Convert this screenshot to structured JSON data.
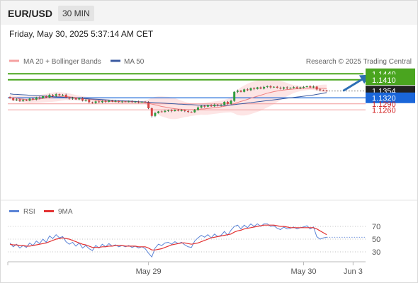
{
  "header": {
    "pair": "EUR/USD",
    "timeframe": "30 MIN"
  },
  "datetime": "Friday, May 30, 2025 5:37:14 AM CET",
  "legend": {
    "ma20": "MA 20 + Bollinger Bands",
    "ma50": "MA 50",
    "credit": "Research © 2025 Trading Central"
  },
  "colors": {
    "up": "#2e9e3e",
    "down": "#d64545",
    "wick": "#333333",
    "ma20": "#f08080",
    "ma50": "#3a5aa0",
    "band": "#fde0e0",
    "resistance": "#4aa51f",
    "pivot": "#1a66d9",
    "support": "#f19a9a",
    "support_text": "#d21f1f",
    "current": "#222222",
    "rsi": "#5b84d6",
    "rsi_ma": "#e33333",
    "arrow": "#2e6fb5"
  },
  "chart_data": [
    {
      "type": "candlestick",
      "name": "EUR/USD 30 MIN",
      "ylim": [
        1.082,
        1.1455
      ],
      "x_labels": [
        {
          "label": "May 29",
          "index": 42
        },
        {
          "label": "May 30",
          "index": 89
        },
        {
          "label": "Jun 3",
          "index": 104
        }
      ],
      "levels": [
        {
          "value": 1.144,
          "label": "1.1440",
          "kind": "resistance"
        },
        {
          "value": 1.141,
          "label": "1.1410",
          "kind": "resistance"
        },
        {
          "value": 1.1354,
          "label": "1.1354",
          "kind": "current"
        },
        {
          "value": 1.132,
          "label": "1.1320",
          "kind": "pivot"
        },
        {
          "value": 1.129,
          "label": "1.1290",
          "kind": "support"
        },
        {
          "value": 1.126,
          "label": "1.1260",
          "kind": "support"
        }
      ],
      "forecast_arrow": {
        "from_index": 101,
        "from": 1.1355,
        "to_index": 109,
        "to": 1.1435
      },
      "close": [
        1.1318,
        1.1308,
        1.1312,
        1.1305,
        1.131,
        1.1306,
        1.1316,
        1.1312,
        1.1322,
        1.1318,
        1.1328,
        1.1322,
        1.1335,
        1.133,
        1.1338,
        1.1332,
        1.1335,
        1.1322,
        1.1316,
        1.132,
        1.1312,
        1.1318,
        1.1306,
        1.131,
        1.1298,
        1.1294,
        1.1302,
        1.1298,
        1.1304,
        1.13,
        1.1306,
        1.1302,
        1.1304,
        1.13,
        1.1302,
        1.13,
        1.1302,
        1.1299,
        1.1301,
        1.1298,
        1.13,
        1.1297,
        1.1268,
        1.123,
        1.1244,
        1.1252,
        1.125,
        1.1255,
        1.1258,
        1.1254,
        1.126,
        1.1256,
        1.1258,
        1.1254,
        1.125,
        1.1248,
        1.126,
        1.1272,
        1.128,
        1.1276,
        1.1284,
        1.1278,
        1.1286,
        1.1282,
        1.1285,
        1.13,
        1.129,
        1.1305,
        1.135,
        1.1356,
        1.135,
        1.1362,
        1.1358,
        1.1368,
        1.1364,
        1.1372,
        1.1366,
        1.1374,
        1.1378,
        1.1372,
        1.1375,
        1.137,
        1.1366,
        1.1372,
        1.1368,
        1.137,
        1.1373,
        1.1368,
        1.1372,
        1.1374,
        1.1378,
        1.1372,
        1.1376,
        1.1362,
        1.1358,
        1.1356,
        1.1354
      ],
      "ma20": [
        1.1322,
        1.132,
        1.1318,
        1.1315,
        1.1313,
        1.1311,
        1.131,
        1.1311,
        1.1313,
        1.1315,
        1.1317,
        1.1319,
        1.1321,
        1.1323,
        1.1325,
        1.1326,
        1.1327,
        1.1327,
        1.1325,
        1.1323,
        1.1321,
        1.1319,
        1.1317,
        1.1315,
        1.1313,
        1.1311,
        1.1309,
        1.1307,
        1.1305,
        1.1304,
        1.1303,
        1.1302,
        1.1301,
        1.1301,
        1.13,
        1.13,
        1.13,
        1.13,
        1.13,
        1.1299,
        1.1298,
        1.1297,
        1.1294,
        1.1289,
        1.1285,
        1.1281,
        1.1277,
        1.1274,
        1.1271,
        1.1268,
        1.1266,
        1.1264,
        1.1263,
        1.1262,
        1.1261,
        1.1261,
        1.1261,
        1.1262,
        1.1264,
        1.1265,
        1.1267,
        1.1269,
        1.1271,
        1.1273,
        1.1275,
        1.1278,
        1.1281,
        1.1285,
        1.1291,
        1.1297,
        1.1302,
        1.1307,
        1.1312,
        1.1318,
        1.1323,
        1.1328,
        1.1333,
        1.1338,
        1.1343,
        1.1347,
        1.1351,
        1.1354,
        1.1357,
        1.1359,
        1.1361,
        1.1362,
        1.1364,
        1.1365,
        1.1366,
        1.1367,
        1.1368,
        1.1369,
        1.1369,
        1.1369,
        1.1368,
        1.1367,
        1.1366
      ],
      "bb_upper": [
        1.1335,
        1.1333,
        1.1332,
        1.133,
        1.1328,
        1.1327,
        1.1327,
        1.1328,
        1.1331,
        1.1334,
        1.1337,
        1.134,
        1.1343,
        1.1346,
        1.1348,
        1.1348,
        1.1347,
        1.1345,
        1.1342,
        1.1338,
        1.1334,
        1.1331,
        1.1328,
        1.1326,
        1.1324,
        1.1322,
        1.132,
        1.1318,
        1.1316,
        1.1314,
        1.1312,
        1.131,
        1.1309,
        1.1308,
        1.1307,
        1.1306,
        1.1306,
        1.1305,
        1.1305,
        1.1305,
        1.1305,
        1.1306,
        1.1312,
        1.132,
        1.1325,
        1.1327,
        1.1327,
        1.1326,
        1.1325,
        1.1322,
        1.1318,
        1.1312,
        1.1306,
        1.13,
        1.1296,
        1.1292,
        1.129,
        1.129,
        1.1292,
        1.1295,
        1.1298,
        1.13,
        1.1302,
        1.1304,
        1.1306,
        1.131,
        1.1315,
        1.1322,
        1.134,
        1.136,
        1.1372,
        1.1382,
        1.139,
        1.1397,
        1.1402,
        1.1406,
        1.141,
        1.1412,
        1.1414,
        1.1414,
        1.1413,
        1.141,
        1.1405,
        1.14,
        1.1394,
        1.1388,
        1.1384,
        1.1381,
        1.1379,
        1.1378,
        1.1378,
        1.1378,
        1.1379,
        1.1382,
        1.1384,
        1.1386,
        1.1386
      ],
      "bb_lower": [
        1.1309,
        1.1307,
        1.1304,
        1.13,
        1.1298,
        1.1295,
        1.1293,
        1.1294,
        1.1295,
        1.1296,
        1.1297,
        1.1298,
        1.1299,
        1.13,
        1.1302,
        1.1304,
        1.1307,
        1.1309,
        1.1308,
        1.1308,
        1.1308,
        1.1307,
        1.1306,
        1.1304,
        1.1302,
        1.13,
        1.1298,
        1.1296,
        1.1294,
        1.1294,
        1.1294,
        1.1294,
        1.1293,
        1.1294,
        1.1293,
        1.1294,
        1.1294,
        1.1295,
        1.1295,
        1.1293,
        1.1291,
        1.1288,
        1.1276,
        1.1258,
        1.1245,
        1.1235,
        1.1227,
        1.1222,
        1.1217,
        1.1214,
        1.1214,
        1.1216,
        1.122,
        1.1224,
        1.1226,
        1.123,
        1.1232,
        1.1234,
        1.1236,
        1.1235,
        1.1236,
        1.1238,
        1.124,
        1.1242,
        1.1244,
        1.1246,
        1.1247,
        1.1248,
        1.1242,
        1.1234,
        1.1232,
        1.1232,
        1.1234,
        1.1239,
        1.1244,
        1.125,
        1.1256,
        1.1264,
        1.1272,
        1.128,
        1.1289,
        1.1298,
        1.1309,
        1.1318,
        1.1328,
        1.1336,
        1.1344,
        1.1349,
        1.1353,
        1.1356,
        1.1358,
        1.136,
        1.1359,
        1.1356,
        1.1352,
        1.1348,
        1.1346
      ],
      "ma50": [
        1.134,
        1.1338,
        1.1337,
        1.1336,
        1.1335,
        1.1334,
        1.1333,
        1.1332,
        1.1331,
        1.133,
        1.1329,
        1.1328,
        1.1327,
        1.1326,
        1.1325,
        1.1324,
        1.1323,
        1.1322,
        1.1321,
        1.132,
        1.1319,
        1.1318,
        1.1317,
        1.1316,
        1.1315,
        1.1314,
        1.1313,
        1.1312,
        1.1311,
        1.131,
        1.1309,
        1.1308,
        1.1307,
        1.1306,
        1.1305,
        1.1304,
        1.1304,
        1.1303,
        1.1302,
        1.1301,
        1.13,
        1.1299,
        1.1298,
        1.1297,
        1.1296,
        1.1295,
        1.1294,
        1.1293,
        1.1292,
        1.1291,
        1.129,
        1.1289,
        1.1288,
        1.1287,
        1.1286,
        1.1286,
        1.1285,
        1.1284,
        1.1284,
        1.1283,
        1.1283,
        1.1282,
        1.1282,
        1.1282,
        1.1282,
        1.1282,
        1.1283,
        1.1284,
        1.1286,
        1.1288,
        1.129,
        1.1292,
        1.1294,
        1.1296,
        1.1298,
        1.13,
        1.1302,
        1.1304,
        1.1306,
        1.1308,
        1.131,
        1.1312,
        1.1314,
        1.1316,
        1.1318,
        1.132,
        1.1322,
        1.1324,
        1.1326,
        1.1328,
        1.133,
        1.1332,
        1.1334,
        1.1337,
        1.134,
        1.1343,
        1.1346
      ]
    },
    {
      "type": "line",
      "name": "RSI",
      "legend": [
        "RSI",
        "9MA"
      ],
      "ylim": [
        20,
        80
      ],
      "ticks": [
        70,
        50,
        30
      ],
      "gridlines": [
        70,
        50,
        30
      ],
      "rsi": [
        44,
        38,
        42,
        36,
        40,
        37,
        44,
        40,
        47,
        43,
        50,
        45,
        55,
        51,
        57,
        52,
        54,
        46,
        42,
        45,
        39,
        44,
        36,
        40,
        35,
        32,
        40,
        36,
        42,
        38,
        43,
        39,
        41,
        38,
        40,
        38,
        40,
        37,
        39,
        36,
        38,
        35,
        28,
        22,
        36,
        42,
        40,
        44,
        45,
        42,
        46,
        43,
        45,
        41,
        38,
        37,
        47,
        52,
        56,
        53,
        57,
        52,
        58,
        54,
        56,
        62,
        56,
        64,
        70,
        72,
        66,
        72,
        68,
        74,
        70,
        74,
        70,
        74,
        74,
        70,
        71,
        67,
        65,
        69,
        66,
        67,
        69,
        66,
        68,
        69,
        71,
        66,
        69,
        54,
        50,
        52,
        53
      ],
      "rsi_ma": [
        42,
        41,
        41,
        40,
        40,
        39,
        39,
        40,
        41,
        42,
        43,
        44,
        46,
        48,
        50,
        51,
        52,
        51,
        50,
        48,
        46,
        44,
        42,
        41,
        39,
        37,
        37,
        37,
        38,
        38,
        39,
        39,
        40,
        40,
        40,
        39,
        39,
        39,
        39,
        38,
        38,
        38,
        36,
        33,
        33,
        34,
        35,
        37,
        39,
        41,
        42,
        43,
        44,
        44,
        43,
        42,
        43,
        44,
        46,
        48,
        50,
        52,
        53,
        54,
        55,
        56,
        57,
        58,
        61,
        63,
        64,
        66,
        67,
        68,
        69,
        70,
        71,
        72,
        72,
        72,
        72,
        71,
        70,
        70,
        69,
        68,
        68,
        68,
        68,
        68,
        68,
        68,
        68,
        66,
        63,
        60,
        57
      ]
    }
  ]
}
